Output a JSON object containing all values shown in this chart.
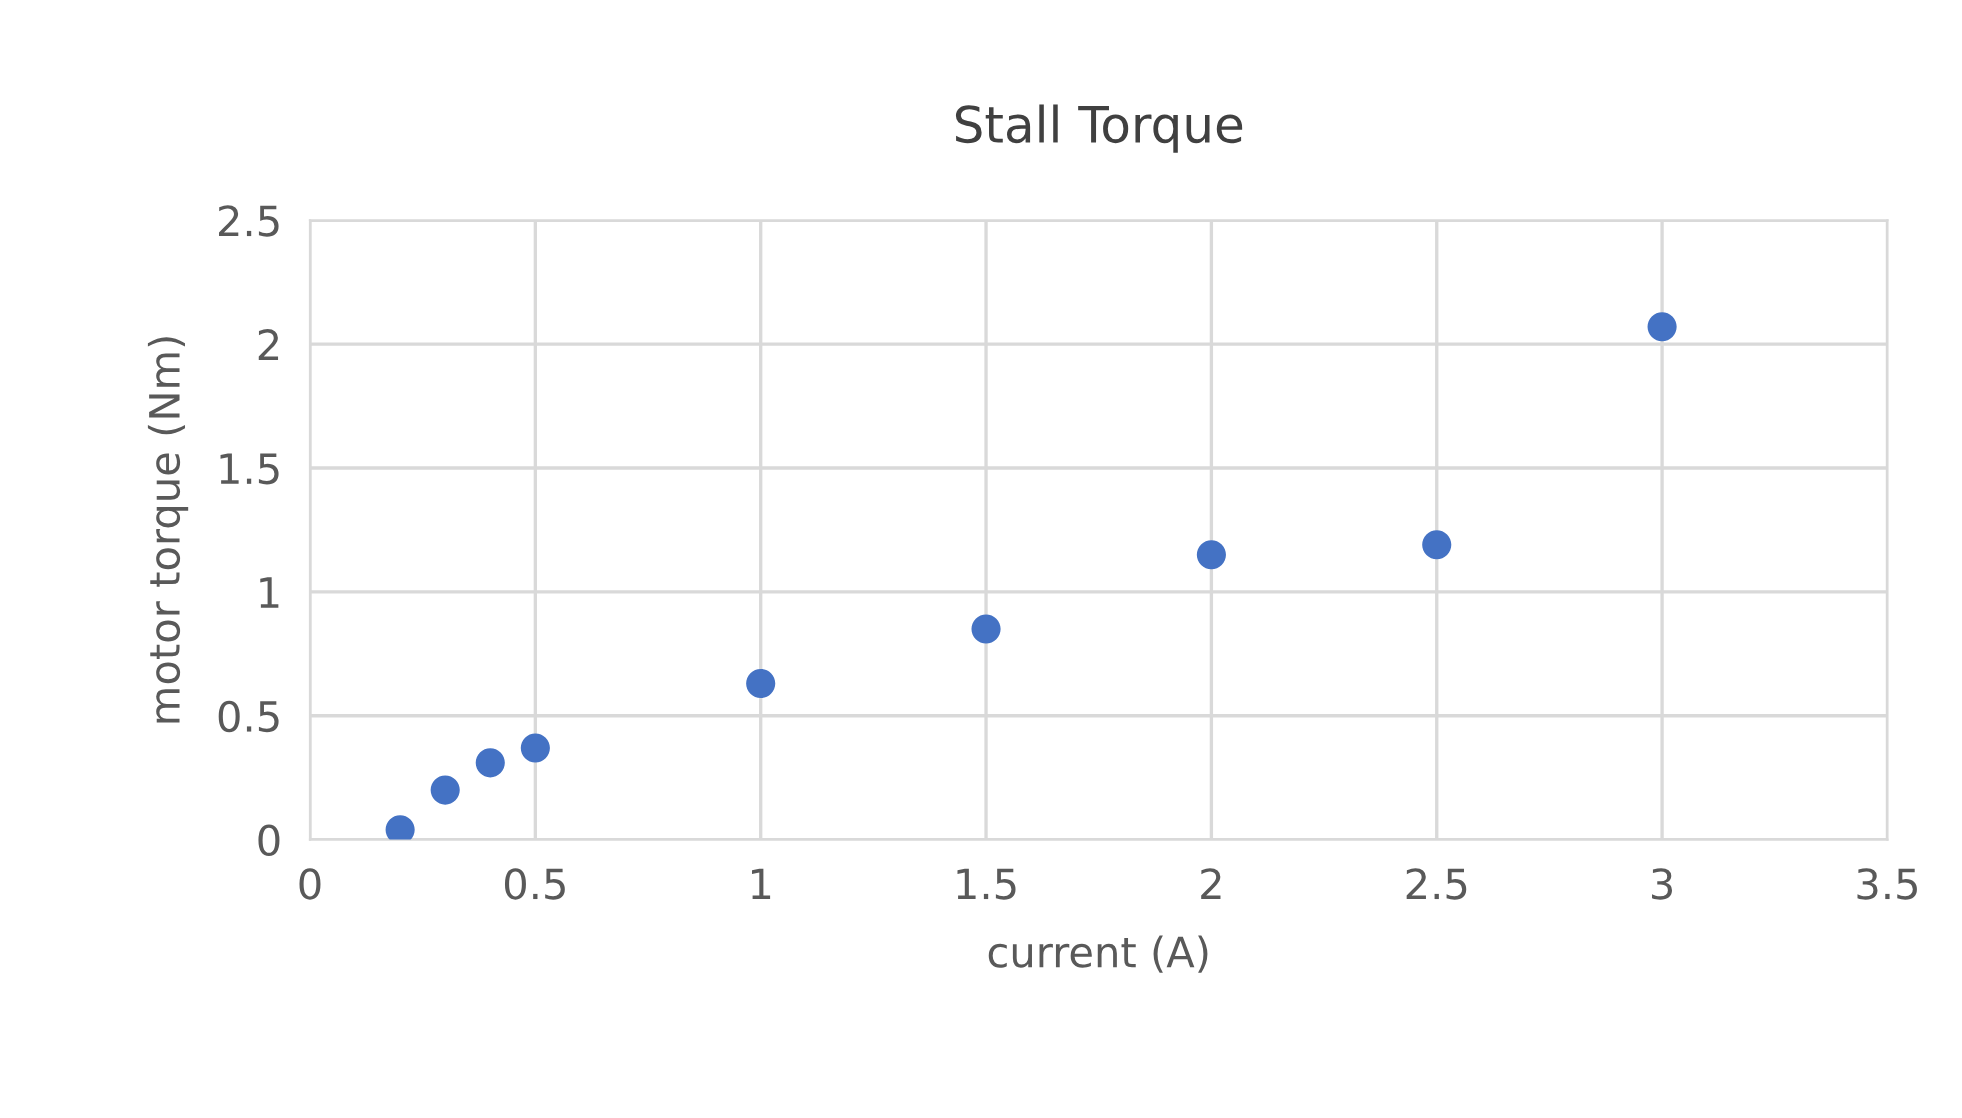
{
  "chart_data": {
    "type": "scatter",
    "title": "Stall Torque",
    "xlabel": "current (A)",
    "ylabel": "motor torque (Nm)",
    "x": [
      0.2,
      0.3,
      0.4,
      0.5,
      1,
      1.5,
      2,
      2.5,
      3
    ],
    "series": [
      {
        "color": "#4472c4",
        "values": [
          0.04,
          0.2,
          0.31,
          0.37,
          0.63,
          0.85,
          1.15,
          1.19,
          2.07
        ]
      }
    ],
    "xlim": [
      0,
      3.5
    ],
    "ylim": [
      0,
      2.5
    ],
    "xticks": [
      0,
      0.5,
      1,
      1.5,
      2,
      2.5,
      3,
      3.5
    ],
    "yticks": [
      0,
      0.5,
      1,
      1.5,
      2,
      2.5
    ],
    "grid": true,
    "marker": "circle"
  }
}
